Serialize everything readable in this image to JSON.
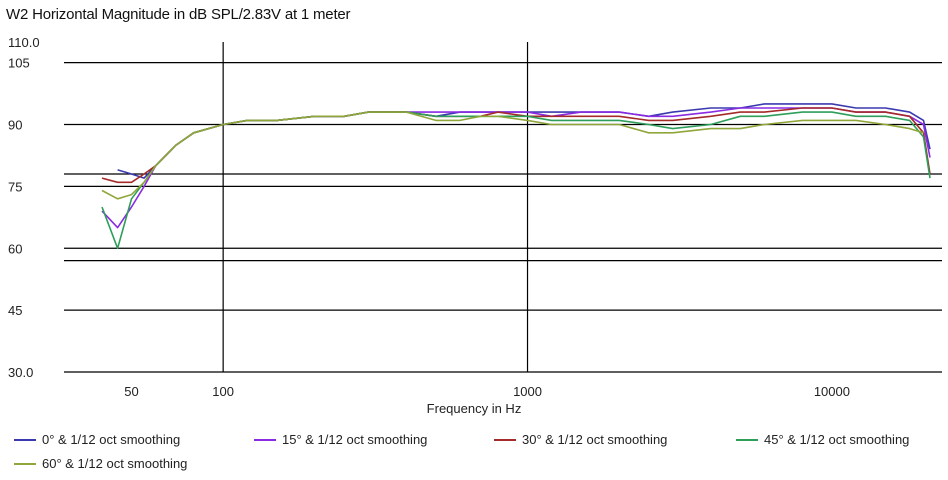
{
  "chart_data": {
    "type": "line",
    "title": "W2 Horizontal Magnitude in dB SPL/2.83V at 1 meter",
    "xlabel": "Frequency in Hz",
    "ylabel": "",
    "xscale": "log",
    "xlim": [
      30,
      23000
    ],
    "ylim": [
      30,
      110
    ],
    "x_ticks": [
      {
        "value": 50,
        "label": "50"
      },
      {
        "value": 100,
        "label": "100"
      },
      {
        "value": 1000,
        "label": "1000"
      },
      {
        "value": 10000,
        "label": "10000"
      }
    ],
    "y_ticks": [
      {
        "value": 30,
        "label": "30.0"
      },
      {
        "value": 45,
        "label": "45"
      },
      {
        "value": 60,
        "label": "60"
      },
      {
        "value": 75,
        "label": "75"
      },
      {
        "value": 90,
        "label": "90"
      },
      {
        "value": 105,
        "label": "105"
      },
      {
        "value": 110,
        "label": "110.0"
      }
    ],
    "grid": {
      "horizontal": [
        30,
        45,
        57,
        60,
        75,
        78,
        90,
        105
      ],
      "vertical": [
        100,
        1000
      ]
    },
    "legend_position": "bottom",
    "series": [
      {
        "name": "0° & 1/12 oct smoothing",
        "color": "#3a3ab0",
        "x": [
          45,
          50,
          55,
          60,
          70,
          80,
          100,
          120,
          150,
          200,
          250,
          300,
          400,
          500,
          600,
          700,
          800,
          1000,
          1200,
          1500,
          2000,
          2500,
          3000,
          4000,
          5000,
          6000,
          8000,
          10000,
          12000,
          15000,
          18000,
          20000,
          21000
        ],
        "values": [
          79,
          78,
          77,
          80,
          85,
          88,
          90,
          91,
          91,
          92,
          92,
          93,
          93,
          92,
          93,
          93,
          93,
          93,
          93,
          93,
          93,
          92,
          93,
          94,
          94,
          95,
          95,
          95,
          94,
          94,
          93,
          91,
          84
        ]
      },
      {
        "name": "15° & 1/12 oct smoothing",
        "color": "#8a2be2",
        "x": [
          40,
          45,
          50,
          55,
          60,
          70,
          80,
          100,
          120,
          150,
          200,
          250,
          300,
          400,
          500,
          600,
          700,
          800,
          1000,
          1200,
          1500,
          2000,
          2500,
          3000,
          4000,
          5000,
          6000,
          8000,
          10000,
          12000,
          15000,
          18000,
          20000,
          21000
        ],
        "values": [
          69,
          65,
          70,
          75,
          80,
          85,
          88,
          90,
          91,
          91,
          92,
          92,
          93,
          93,
          93,
          93,
          93,
          93,
          93,
          92,
          93,
          93,
          92,
          92,
          93,
          94,
          94,
          94,
          94,
          93,
          93,
          92,
          90,
          82
        ]
      },
      {
        "name": "30° & 1/12 oct smoothing",
        "color": "#a52a2a",
        "x": [
          40,
          45,
          50,
          55,
          60,
          70,
          80,
          100,
          120,
          150,
          200,
          250,
          300,
          400,
          500,
          600,
          700,
          800,
          1000,
          1200,
          1500,
          2000,
          2500,
          3000,
          4000,
          5000,
          6000,
          8000,
          10000,
          12000,
          15000,
          18000,
          20000,
          21000
        ],
        "values": [
          77,
          76,
          76,
          78,
          80,
          85,
          88,
          90,
          91,
          91,
          92,
          92,
          93,
          93,
          92,
          92,
          92,
          93,
          92,
          92,
          92,
          92,
          91,
          91,
          92,
          93,
          93,
          94,
          94,
          93,
          93,
          92,
          88,
          78
        ]
      },
      {
        "name": "45° & 1/12 oct smoothing",
        "color": "#2e9e5a",
        "x": [
          40,
          45,
          50,
          55,
          60,
          70,
          80,
          100,
          120,
          150,
          200,
          250,
          300,
          400,
          500,
          600,
          700,
          800,
          1000,
          1200,
          1500,
          2000,
          2500,
          3000,
          4000,
          5000,
          6000,
          8000,
          10000,
          12000,
          15000,
          18000,
          20000,
          21000
        ],
        "values": [
          70,
          60,
          72,
          76,
          80,
          85,
          88,
          90,
          91,
          91,
          92,
          92,
          93,
          93,
          92,
          92,
          92,
          92,
          92,
          91,
          91,
          91,
          90,
          89,
          90,
          92,
          92,
          93,
          93,
          92,
          92,
          91,
          87,
          77
        ]
      },
      {
        "name": "60° & 1/12 oct smoothing",
        "color": "#8fa63a",
        "x": [
          40,
          45,
          50,
          55,
          60,
          70,
          80,
          100,
          120,
          150,
          200,
          250,
          300,
          400,
          500,
          600,
          700,
          800,
          1000,
          1200,
          1500,
          2000,
          2500,
          3000,
          4000,
          5000,
          6000,
          8000,
          10000,
          12000,
          15000,
          18000,
          20000
        ],
        "values": [
          74,
          72,
          73,
          76,
          80,
          85,
          88,
          90,
          91,
          91,
          92,
          92,
          93,
          93,
          91,
          91,
          92,
          92,
          91,
          90,
          90,
          90,
          88,
          88,
          89,
          89,
          90,
          91,
          91,
          91,
          90,
          89,
          88
        ]
      }
    ]
  }
}
